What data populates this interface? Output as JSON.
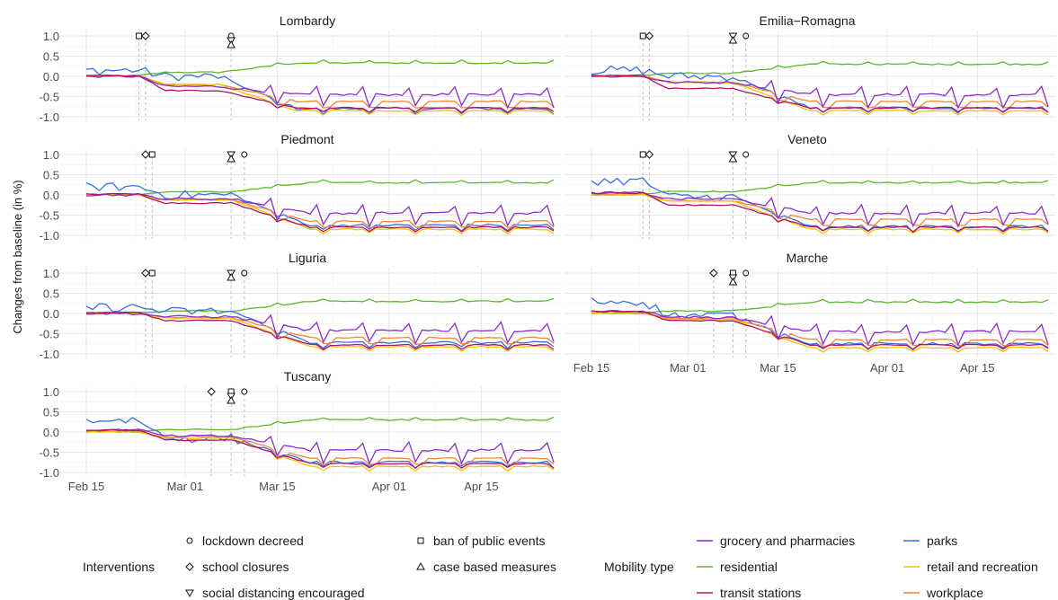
{
  "chart_data": {
    "type": "line",
    "ylabel": "Changes from baseline (in %)",
    "xlabel": "",
    "x_ticks": [
      "Feb 15",
      "Mar 01",
      "Mar 15",
      "Apr 01",
      "Apr 15"
    ],
    "x_range": [
      "2020-02-15",
      "2020-04-26"
    ],
    "ylim": [
      -1.0,
      1.0
    ],
    "y_ticks": [
      "1.0",
      "0.5",
      "0.0",
      "-0.5",
      "-1.0"
    ],
    "grid": true,
    "legend_placement": "bottom",
    "legend": {
      "interventions_title": "Interventions",
      "interventions": [
        {
          "key": "lockdown",
          "label": "lockdown decreed",
          "symbol": "circle"
        },
        {
          "key": "ban",
          "label": "ban of public events",
          "symbol": "square"
        },
        {
          "key": "school",
          "label": "school closures",
          "symbol": "diamond"
        },
        {
          "key": "case",
          "label": "case based measures",
          "symbol": "triangle-up"
        },
        {
          "key": "social",
          "label": "social distancing encouraged",
          "symbol": "triangle-down"
        }
      ],
      "mobility_title": "Mobility type",
      "mobility": [
        {
          "key": "grocery",
          "label": "grocery and pharmacies",
          "color": "#8b2fc9"
        },
        {
          "key": "parks",
          "label": "parks",
          "color": "#3b6fe0"
        },
        {
          "key": "residential",
          "label": "residential",
          "color": "#5cb82a"
        },
        {
          "key": "retail",
          "label": "retail and recreation",
          "color": "#f2c500"
        },
        {
          "key": "transit",
          "label": "transit stations",
          "color": "#b0126b"
        },
        {
          "key": "workplace",
          "label": "workplace",
          "color": "#f0873a"
        }
      ]
    },
    "regions": [
      {
        "name": "Lombardy",
        "interventions": {
          "ban": "2020-02-23",
          "school": "2020-02-24",
          "lockdown": "2020-03-08",
          "case": "2020-03-08",
          "social": "2020-03-08"
        },
        "levels": {
          "pre": {
            "grocery": 0.0,
            "parks": 0.15,
            "residential": 0.02,
            "retail": 0.0,
            "transit": 0.02,
            "workplace": 0.0
          },
          "mid": {
            "grocery": -0.25,
            "parks": 0.0,
            "residential": 0.1,
            "retail": -0.2,
            "transit": -0.35,
            "workplace": -0.2
          },
          "post": {
            "grocery": -0.45,
            "parks": -0.8,
            "residential": 0.33,
            "retail": -0.85,
            "transit": -0.78,
            "workplace": -0.62
          }
        }
      },
      {
        "name": "Emilia−Romagna",
        "interventions": {
          "ban": "2020-02-23",
          "school": "2020-02-24",
          "lockdown": "2020-03-10",
          "case": "2020-03-08",
          "social": "2020-03-08"
        },
        "levels": {
          "pre": {
            "grocery": 0.0,
            "parks": 0.15,
            "residential": 0.02,
            "retail": 0.0,
            "transit": 0.02,
            "workplace": 0.0
          },
          "mid": {
            "grocery": -0.15,
            "parks": 0.0,
            "residential": 0.08,
            "retail": -0.15,
            "transit": -0.3,
            "workplace": -0.15
          },
          "post": {
            "grocery": -0.45,
            "parks": -0.78,
            "residential": 0.3,
            "retail": -0.85,
            "transit": -0.78,
            "workplace": -0.62
          }
        }
      },
      {
        "name": "Piedmont",
        "interventions": {
          "school": "2020-02-24",
          "ban": "2020-02-25",
          "lockdown": "2020-03-10",
          "case": "2020-03-08",
          "social": "2020-03-08"
        },
        "levels": {
          "pre": {
            "grocery": 0.0,
            "parks": 0.2,
            "residential": 0.02,
            "retail": 0.0,
            "transit": 0.02,
            "workplace": 0.0
          },
          "mid": {
            "grocery": -0.1,
            "parks": 0.0,
            "residential": 0.08,
            "retail": -0.12,
            "transit": -0.2,
            "workplace": -0.12
          },
          "post": {
            "grocery": -0.45,
            "parks": -0.75,
            "residential": 0.3,
            "retail": -0.85,
            "transit": -0.8,
            "workplace": -0.65
          }
        }
      },
      {
        "name": "Veneto",
        "interventions": {
          "ban": "2020-02-23",
          "school": "2020-02-24",
          "lockdown": "2020-03-10",
          "case": "2020-03-08",
          "social": "2020-03-08"
        },
        "levels": {
          "pre": {
            "grocery": 0.05,
            "parks": 0.35,
            "residential": 0.02,
            "retail": 0.0,
            "transit": 0.05,
            "workplace": 0.0
          },
          "mid": {
            "grocery": -0.1,
            "parks": -0.05,
            "residential": 0.08,
            "retail": -0.15,
            "transit": -0.25,
            "workplace": -0.15
          },
          "post": {
            "grocery": -0.45,
            "parks": -0.78,
            "residential": 0.3,
            "retail": -0.85,
            "transit": -0.8,
            "workplace": -0.6
          }
        }
      },
      {
        "name": "Liguria",
        "interventions": {
          "school": "2020-02-24",
          "ban": "2020-02-25",
          "lockdown": "2020-03-10",
          "case": "2020-03-08",
          "social": "2020-03-08"
        },
        "levels": {
          "pre": {
            "grocery": 0.0,
            "parks": 0.15,
            "residential": 0.02,
            "retail": 0.0,
            "transit": 0.02,
            "workplace": 0.0
          },
          "mid": {
            "grocery": -0.08,
            "parks": 0.05,
            "residential": 0.06,
            "retail": -0.12,
            "transit": -0.18,
            "workplace": -0.1
          },
          "post": {
            "grocery": -0.42,
            "parks": -0.72,
            "residential": 0.3,
            "retail": -0.82,
            "transit": -0.78,
            "workplace": -0.6
          }
        }
      },
      {
        "name": "Marche",
        "interventions": {
          "school": "2020-03-05",
          "ban": "2020-03-08",
          "lockdown": "2020-03-10",
          "case": "2020-03-08",
          "social": "2020-03-08"
        },
        "levels": {
          "pre": {
            "grocery": 0.05,
            "parks": 0.3,
            "residential": 0.02,
            "retail": 0.0,
            "transit": 0.05,
            "workplace": 0.0
          },
          "mid": {
            "grocery": -0.1,
            "parks": -0.05,
            "residential": 0.06,
            "retail": -0.15,
            "transit": -0.18,
            "workplace": -0.12
          },
          "post": {
            "grocery": -0.45,
            "parks": -0.75,
            "residential": 0.28,
            "retail": -0.85,
            "transit": -0.78,
            "workplace": -0.65
          }
        }
      },
      {
        "name": "Tuscany",
        "interventions": {
          "school": "2020-03-05",
          "ban": "2020-03-08",
          "lockdown": "2020-03-10",
          "case": "2020-03-08",
          "social": "2020-03-08"
        },
        "levels": {
          "pre": {
            "grocery": 0.05,
            "parks": 0.3,
            "residential": 0.02,
            "retail": 0.0,
            "transit": 0.05,
            "workplace": 0.0
          },
          "mid": {
            "grocery": -0.1,
            "parks": -0.15,
            "residential": 0.06,
            "retail": -0.15,
            "transit": -0.2,
            "workplace": -0.12
          },
          "post": {
            "grocery": -0.45,
            "parks": -0.75,
            "residential": 0.3,
            "retail": -0.85,
            "transit": -0.78,
            "workplace": -0.65
          }
        }
      }
    ]
  }
}
